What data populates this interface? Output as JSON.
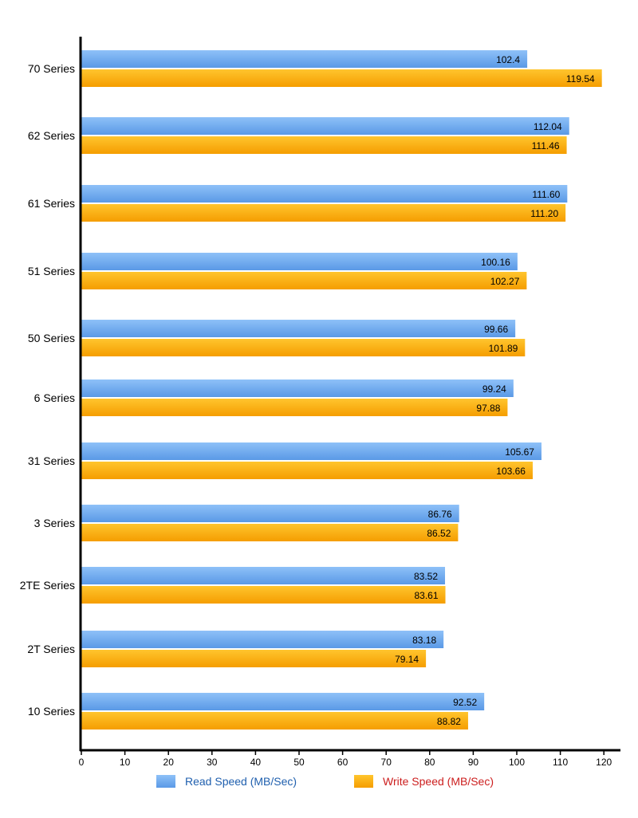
{
  "chart_data": {
    "type": "bar",
    "orientation": "horizontal",
    "categories": [
      "70 Series",
      "62 Series",
      "61 Series",
      "51 Series",
      "50 Series",
      "6 Series",
      "31 Series",
      "3 Series",
      "2TE Series",
      "2T Series",
      "10 Series"
    ],
    "series": [
      {
        "name": "Read Speed (MB/Sec)",
        "values": [
          "102.4",
          "112.04",
          "111.60",
          "100.16",
          "99.66",
          "99.24",
          "105.67",
          "86.76",
          "83.52",
          "83.18",
          "92.52"
        ],
        "color": "#6aa8ee",
        "label_color": "#1f5fae"
      },
      {
        "name": "Write Speed (MB/Sec)",
        "values": [
          "119.54",
          "111.46",
          "111.20",
          "102.27",
          "101.89",
          "97.88",
          "103.66",
          "86.52",
          "83.61",
          "79.14",
          "88.82"
        ],
        "color": "#ffaa10",
        "label_color": "#cc1e1e"
      }
    ],
    "xlim": [
      0,
      120
    ],
    "xticks": [
      "0",
      "10",
      "20",
      "30",
      "40",
      "50",
      "60",
      "70",
      "80",
      "90",
      "100",
      "110",
      "120"
    ],
    "grid": false,
    "legend_position": "bottom"
  }
}
